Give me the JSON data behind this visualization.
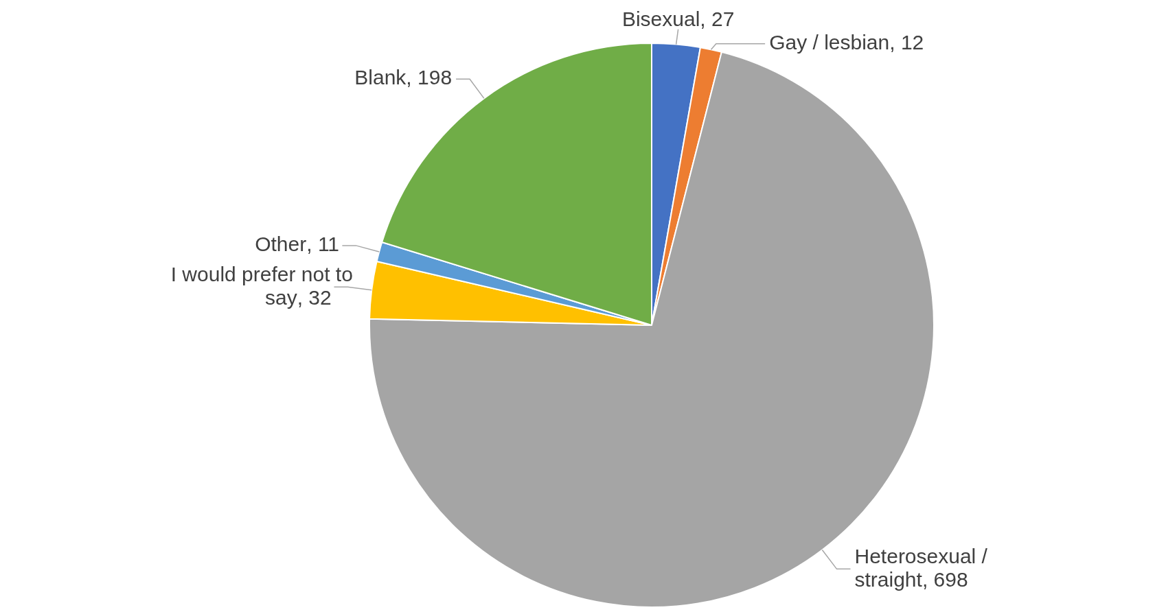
{
  "chart_data": {
    "type": "pie",
    "categories": [
      "Bisexual",
      "Gay / lesbian",
      "Heterosexual / straight",
      "I would prefer not to say",
      "Other",
      "Blank"
    ],
    "values": [
      27,
      12,
      698,
      32,
      11,
      198
    ],
    "colors": [
      "#4472c4",
      "#ed7d31",
      "#a5a5a5",
      "#ffc000",
      "#5b9bd5",
      "#70ad47"
    ],
    "value_labels": [
      ", 27",
      ", 12",
      ", 698",
      ", 32",
      ", 11",
      ", 198"
    ],
    "legend": false
  }
}
